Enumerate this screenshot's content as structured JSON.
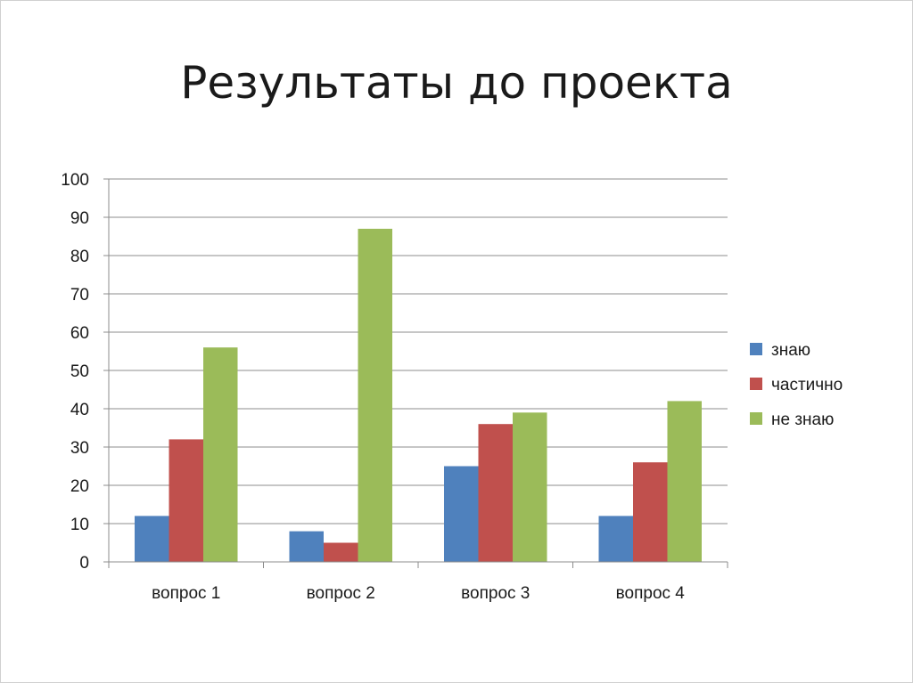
{
  "slide": {
    "title": "Результаты до проекта"
  },
  "chart_data": {
    "type": "bar",
    "categories": [
      "вопрос 1",
      "вопрос 2",
      "вопрос 3",
      "вопрос 4"
    ],
    "series": [
      {
        "name": "знаю",
        "color": "#4F81BD",
        "values": [
          12,
          8,
          25,
          12
        ]
      },
      {
        "name": "частично",
        "color": "#C0504D",
        "values": [
          32,
          5,
          36,
          26
        ]
      },
      {
        "name": "не знаю",
        "color": "#9BBB59",
        "values": [
          56,
          87,
          39,
          42
        ]
      }
    ],
    "ylim": [
      0,
      100
    ],
    "yticks": [
      0,
      10,
      20,
      30,
      40,
      50,
      60,
      70,
      80,
      90,
      100
    ],
    "grid": true,
    "legend_position": "right"
  }
}
